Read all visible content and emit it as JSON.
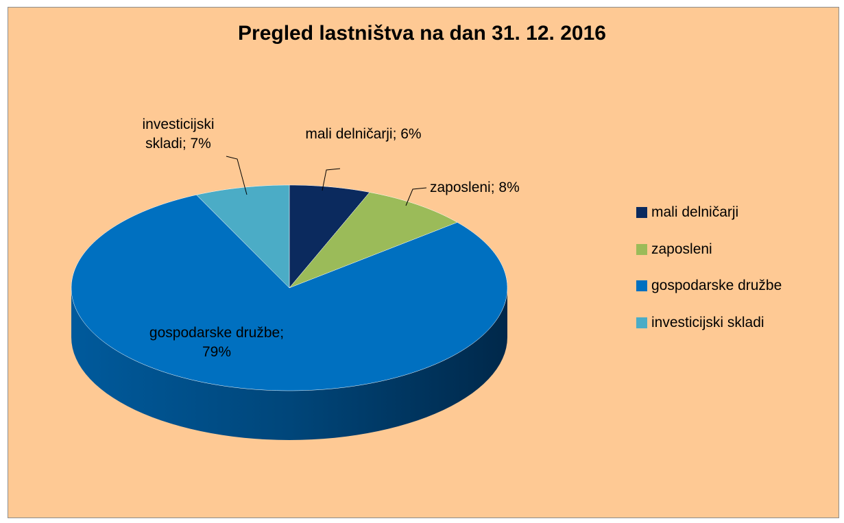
{
  "chart_data": {
    "type": "pie",
    "title": "Pregled lastništva na dan 31. 12. 2016",
    "categories": [
      "mali delničarji",
      "zaposleni",
      "gospodarske družbe",
      "investicijski skladi"
    ],
    "values": [
      6,
      8,
      79,
      7
    ],
    "value_labels": [
      "mali delničarji; 6%",
      "zaposleni; 8%",
      "gospodarske družbe; 79%",
      "investicijski skladi; 7%"
    ],
    "colors": [
      "#0b2a5e",
      "#9bbb59",
      "#0070c0",
      "#4bacc6"
    ],
    "legend": "right"
  }
}
